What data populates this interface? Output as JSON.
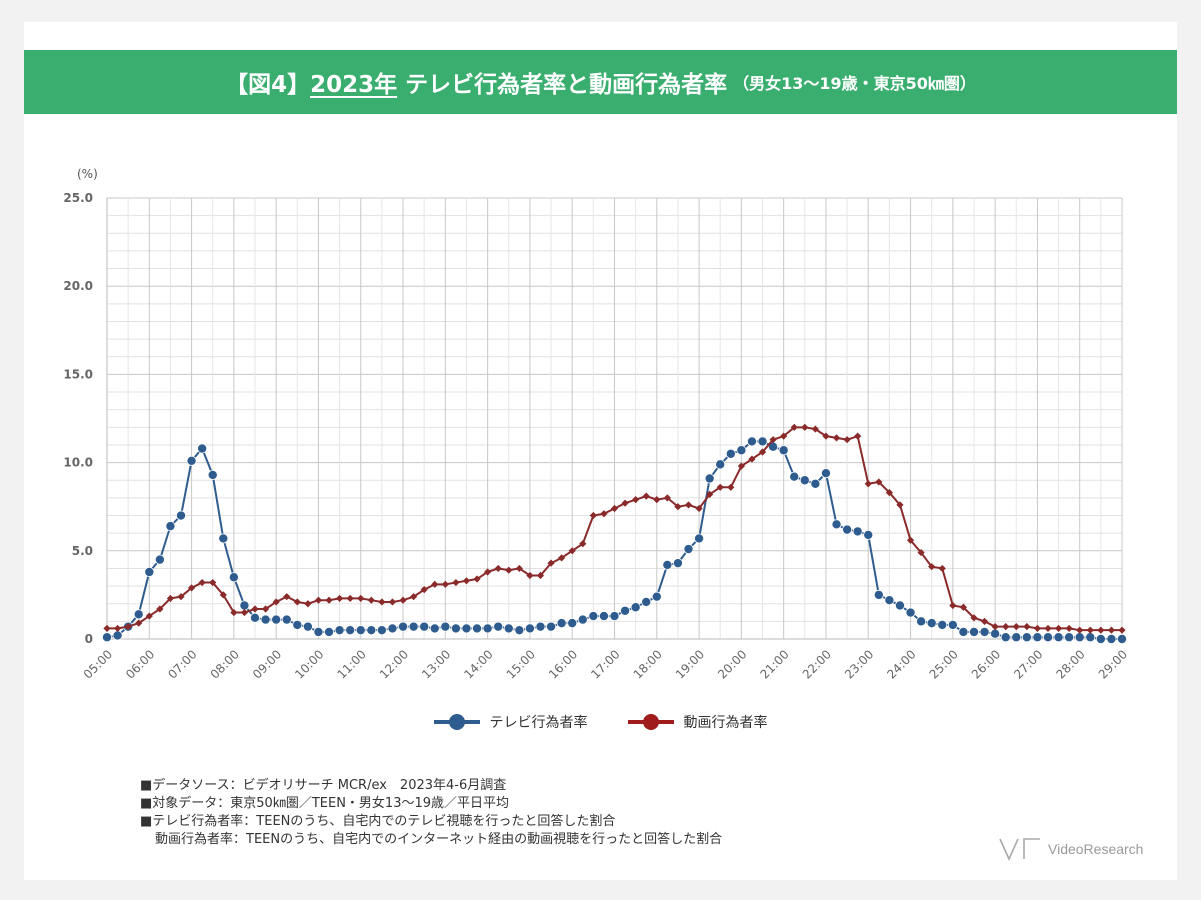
{
  "title": {
    "prefix": "【図4】",
    "year": "2023年",
    "main": " テレビ行為者率と動画行為者率",
    "sub": "（男女13～19歳・東京50㎞圏）"
  },
  "chart_data": {
    "type": "line",
    "ylabel": "(%)",
    "ylim": [
      0,
      25
    ],
    "yticks": [
      "0",
      "5.0",
      "10.0",
      "15.0",
      "20.0",
      "25.0"
    ],
    "xlim": [
      5,
      29
    ],
    "xticks": [
      "05:00",
      "06:00",
      "07:00",
      "08:00",
      "09:00",
      "10:00",
      "11:00",
      "12:00",
      "13:00",
      "14:00",
      "15:00",
      "16:00",
      "17:00",
      "18:00",
      "19:00",
      "20:00",
      "21:00",
      "22:00",
      "23:00",
      "24:00",
      "25:00",
      "26:00",
      "27:00",
      "28:00",
      "29:00"
    ],
    "x_interval_minutes": 15,
    "x_start": "05:00",
    "grid": true,
    "legend_position": "bottom",
    "series": [
      {
        "name": "テレビ行為者率",
        "color": "#2f5c8f",
        "marker": "circle",
        "values": [
          0.1,
          0.2,
          0.7,
          1.4,
          3.8,
          4.5,
          6.4,
          7.0,
          10.1,
          10.8,
          9.3,
          5.7,
          3.5,
          1.9,
          1.2,
          1.1,
          1.1,
          1.1,
          0.8,
          0.7,
          0.4,
          0.4,
          0.5,
          0.5,
          0.5,
          0.5,
          0.5,
          0.6,
          0.7,
          0.7,
          0.7,
          0.6,
          0.7,
          0.6,
          0.6,
          0.6,
          0.6,
          0.7,
          0.6,
          0.5,
          0.6,
          0.7,
          0.7,
          0.9,
          0.9,
          1.1,
          1.3,
          1.3,
          1.3,
          1.6,
          1.8,
          2.1,
          2.4,
          4.2,
          4.3,
          5.1,
          5.7,
          9.1,
          9.9,
          10.5,
          10.7,
          11.2,
          11.2,
          10.9,
          10.7,
          9.2,
          9.0,
          8.8,
          9.4,
          6.5,
          6.2,
          6.1,
          5.9,
          2.5,
          2.2,
          1.9,
          1.5,
          1.0,
          0.9,
          0.8,
          0.8,
          0.4,
          0.4,
          0.4,
          0.3,
          0.1,
          0.1,
          0.1,
          0.1,
          0.1,
          0.1,
          0.1,
          0.1,
          0.1,
          0.0,
          0.0,
          0.0
        ]
      },
      {
        "name": "動画行為者率",
        "color": "#8b2a2a",
        "marker": "diamond",
        "values": [
          0.6,
          0.6,
          0.7,
          0.9,
          1.3,
          1.7,
          2.3,
          2.4,
          2.9,
          3.2,
          3.2,
          2.5,
          1.5,
          1.5,
          1.7,
          1.7,
          2.1,
          2.4,
          2.1,
          2.0,
          2.2,
          2.2,
          2.3,
          2.3,
          2.3,
          2.2,
          2.1,
          2.1,
          2.2,
          2.4,
          2.8,
          3.1,
          3.1,
          3.2,
          3.3,
          3.4,
          3.8,
          4.0,
          3.9,
          4.0,
          3.6,
          3.6,
          4.3,
          4.6,
          5.0,
          5.4,
          7.0,
          7.1,
          7.4,
          7.7,
          7.9,
          8.1,
          7.9,
          8.0,
          7.5,
          7.6,
          7.4,
          8.2,
          8.6,
          8.6,
          9.8,
          10.2,
          10.6,
          11.3,
          11.5,
          12.0,
          12.0,
          11.9,
          11.5,
          11.4,
          11.3,
          11.5,
          8.8,
          8.9,
          8.3,
          7.6,
          5.6,
          4.9,
          4.1,
          4.0,
          1.9,
          1.8,
          1.2,
          1.0,
          0.7,
          0.7,
          0.7,
          0.7,
          0.6,
          0.6,
          0.6,
          0.6,
          0.5,
          0.5,
          0.5,
          0.5,
          0.5
        ]
      }
    ]
  },
  "notes": [
    "■データソース：ビデオリサーチ MCR/ex　2023年4-6月調査",
    "■対象データ：東京50㎞圏／TEEN・男女13～19歳／平日平均",
    "■テレビ行為者率：TEENのうち、自宅内でのテレビ視聴を行ったと回答した割合",
    "動画行為者率：TEENのうち、自宅内でのインターネット経由の動画視聴を行ったと回答した割合"
  ],
  "logo_text": "VideoResearch"
}
